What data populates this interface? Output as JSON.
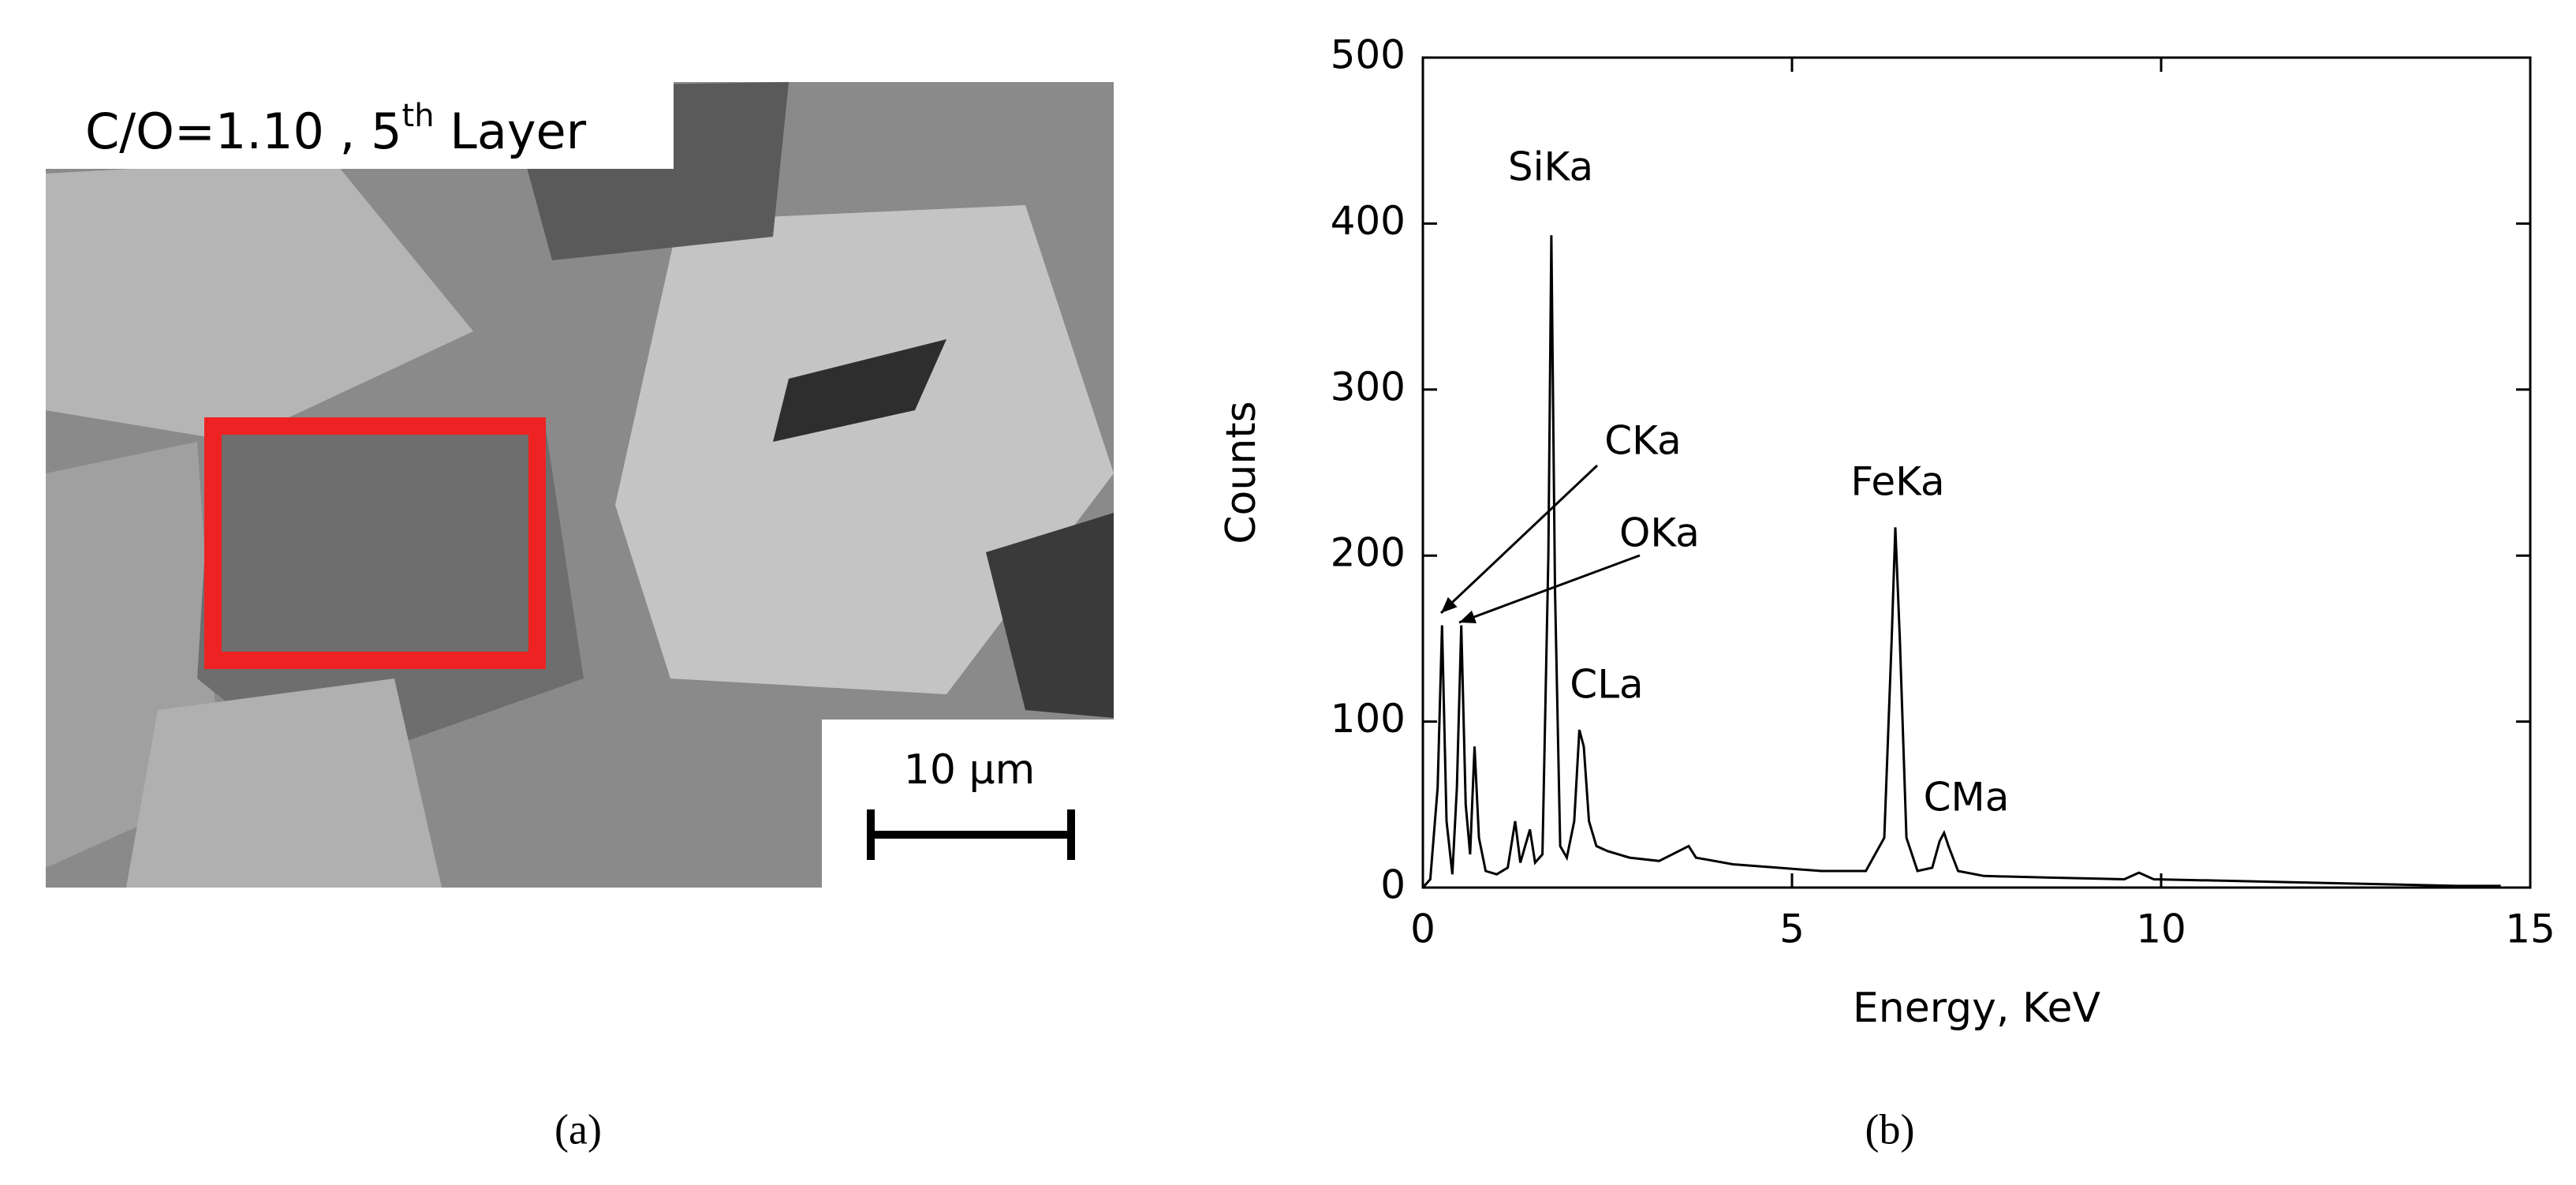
{
  "figure": {
    "label_a": "(a)",
    "label_b": "(b)"
  },
  "image": {
    "caption": "C/O=1.10 , 5",
    "caption_sup": "th",
    "caption_tail": " Layer",
    "scale_bar": "10 μm"
  },
  "chart_data": {
    "type": "line",
    "xlabel": "Energy, KeV",
    "ylabel": "Counts",
    "x": [
      0,
      0.1,
      0.2,
      0.26,
      0.32,
      0.4,
      0.46,
      0.52,
      0.58,
      0.64,
      0.7,
      0.76,
      0.85,
      1.0,
      1.15,
      1.25,
      1.32,
      1.45,
      1.52,
      1.62,
      1.7,
      1.74,
      1.79,
      1.86,
      1.95,
      2.05,
      2.12,
      2.18,
      2.25,
      2.35,
      2.5,
      2.8,
      3.2,
      3.6,
      3.7,
      4.2,
      4.8,
      5.4,
      6.0,
      6.25,
      6.35,
      6.4,
      6.46,
      6.55,
      6.7,
      6.9,
      7.0,
      7.06,
      7.12,
      7.25,
      7.6,
      8.5,
      9.5,
      9.7,
      9.9,
      11,
      12,
      13,
      14,
      14.6
    ],
    "values": [
      0,
      5,
      60,
      158,
      40,
      8,
      60,
      158,
      50,
      20,
      85,
      30,
      10,
      8,
      12,
      40,
      15,
      35,
      15,
      20,
      200,
      393,
      180,
      25,
      18,
      40,
      95,
      85,
      40,
      25,
      22,
      18,
      16,
      25,
      18,
      14,
      12,
      10,
      10,
      30,
      150,
      217,
      150,
      30,
      10,
      12,
      28,
      33,
      25,
      10,
      7,
      6,
      5,
      9,
      5,
      4,
      3,
      2,
      1,
      1
    ],
    "color": "#000000",
    "xlim": [
      0,
      15
    ],
    "xticks": [
      0,
      5,
      10,
      15
    ],
    "ylim": [
      0,
      500
    ],
    "yticks": [
      0,
      100,
      200,
      300,
      400,
      500
    ],
    "annotations": [
      "SiKa",
      "CKa",
      "OKa",
      "FeKa",
      "CLa",
      "CMa"
    ]
  }
}
